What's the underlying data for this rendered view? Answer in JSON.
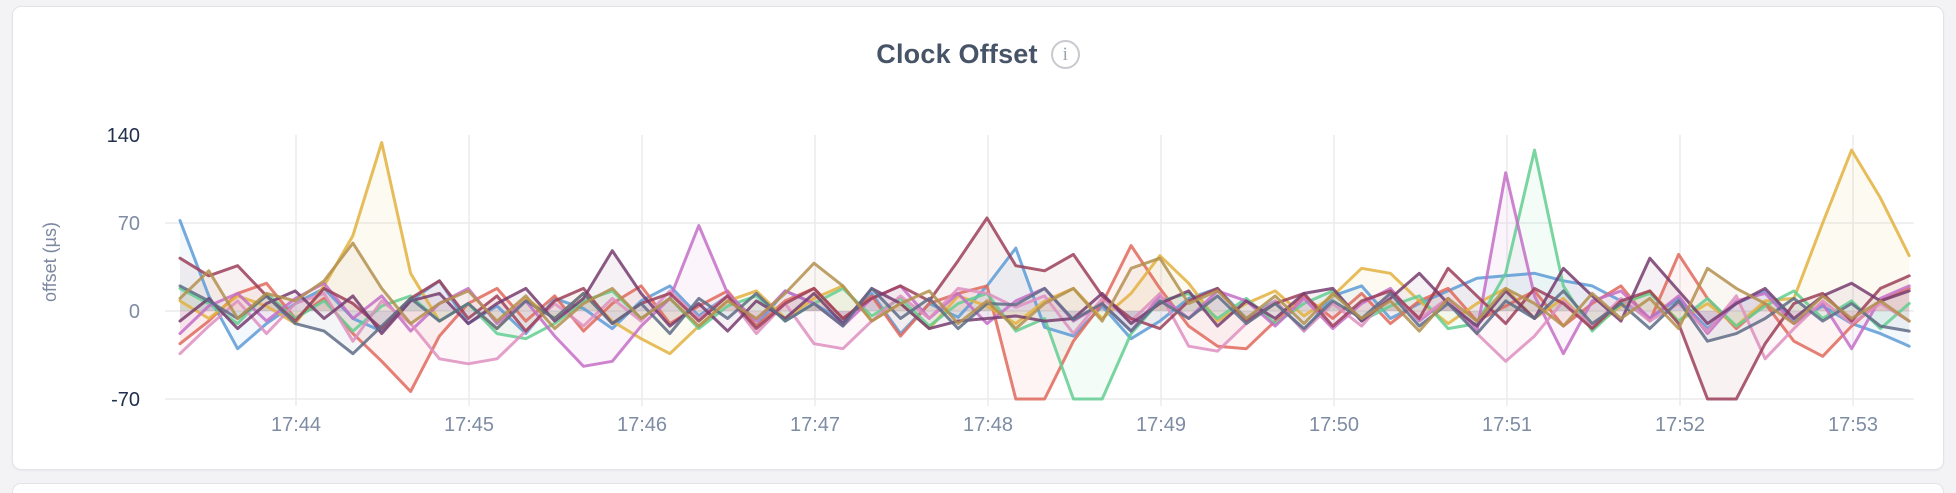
{
  "card": {
    "title": "Clock Offset",
    "info_icon_glyph": "i"
  },
  "chart_data": {
    "type": "line",
    "title": "Clock Offset",
    "xlabel": "",
    "ylabel": "offset (µs)",
    "ylim": [
      -70,
      140
    ],
    "y_ticks": [
      140,
      70,
      0,
      -70
    ],
    "y_tick_labels": [
      "140",
      "70",
      "0",
      "-70"
    ],
    "x_tick_labels": [
      "17:44",
      "17:45",
      "17:46",
      "17:47",
      "17:48",
      "17:49",
      "17:50",
      "17:51",
      "17:52",
      "17:53"
    ],
    "x_start": "17:43:20",
    "x_step_seconds": 10,
    "grid": true,
    "legend": false,
    "line_width": 3,
    "line_opacity": 0.85,
    "area_fill_opacity": 0.07,
    "series": [
      {
        "name": "blue",
        "color": "#5C9BD6",
        "values": [
          72,
          12,
          -30,
          -10,
          6,
          18,
          -6,
          -16,
          8,
          24,
          -10,
          4,
          -18,
          10,
          2,
          -14,
          8,
          20,
          -4,
          12,
          -12,
          16,
          6,
          -8,
          14,
          -18,
          6,
          -5,
          20,
          50,
          -13,
          -20,
          4,
          -22,
          -8,
          10,
          18,
          -6,
          8,
          -16,
          12,
          20,
          -6,
          6,
          16,
          26,
          28,
          30,
          24,
          20,
          8,
          -6,
          10,
          -14,
          6,
          16,
          -8,
          4,
          -10,
          -18,
          -28
        ]
      },
      {
        "name": "coral",
        "color": "#E0685C",
        "values": [
          -26,
          -8,
          14,
          22,
          -6,
          10,
          -18,
          -40,
          -64,
          -20,
          6,
          18,
          -8,
          12,
          -16,
          6,
          20,
          -10,
          4,
          16,
          -12,
          8,
          18,
          -6,
          12,
          -20,
          6,
          14,
          20,
          -70,
          -70,
          -24,
          6,
          52,
          18,
          -12,
          -28,
          -30,
          -8,
          12,
          -6,
          14,
          -10,
          8,
          18,
          -8,
          4,
          16,
          -12,
          6,
          20,
          -8,
          45,
          10,
          -14,
          6,
          -24,
          -36,
          -12,
          8,
          18
        ]
      },
      {
        "name": "gold",
        "color": "#E3B23F",
        "values": [
          8,
          -6,
          12,
          4,
          -10,
          20,
          60,
          134,
          30,
          -8,
          6,
          -14,
          10,
          -6,
          14,
          -8,
          -22,
          -34,
          -12,
          8,
          16,
          -6,
          10,
          20,
          -8,
          6,
          -14,
          12,
          4,
          -10,
          8,
          18,
          -6,
          14,
          44,
          22,
          -8,
          6,
          16,
          -4,
          12,
          34,
          30,
          8,
          -10,
          6,
          18,
          -6,
          10,
          -14,
          4,
          16,
          -8,
          6,
          -12,
          8,
          10,
          70,
          128,
          90,
          44
        ]
      },
      {
        "name": "green",
        "color": "#63CE90",
        "values": [
          18,
          6,
          -10,
          14,
          -6,
          8,
          -16,
          4,
          12,
          -8,
          6,
          -18,
          -22,
          -10,
          8,
          16,
          -6,
          10,
          -14,
          4,
          12,
          -8,
          6,
          18,
          -4,
          10,
          -12,
          6,
          14,
          -16,
          -6,
          -70,
          -70,
          -18,
          8,
          14,
          -6,
          10,
          -10,
          6,
          16,
          -8,
          4,
          12,
          -14,
          -10,
          30,
          128,
          20,
          -16,
          6,
          14,
          -8,
          10,
          -12,
          4,
          16,
          -6,
          8,
          -14,
          6
        ]
      },
      {
        "name": "orchid",
        "color": "#C46FC7",
        "values": [
          -18,
          4,
          14,
          -8,
          10,
          22,
          -6,
          12,
          -16,
          6,
          18,
          -10,
          8,
          -20,
          -44,
          -40,
          -12,
          10,
          68,
          14,
          -8,
          16,
          6,
          -12,
          10,
          20,
          -6,
          14,
          -10,
          8,
          18,
          -8,
          6,
          -16,
          12,
          -6,
          16,
          8,
          -12,
          10,
          -14,
          6,
          18,
          -8,
          10,
          -16,
          110,
          12,
          -34,
          8,
          16,
          -6,
          12,
          -18,
          8,
          14,
          -10,
          6,
          -30,
          10,
          20
        ]
      },
      {
        "name": "pink",
        "color": "#DE8FBF",
        "values": [
          -34,
          -12,
          8,
          -18,
          6,
          14,
          -24,
          8,
          -10,
          -38,
          -42,
          -38,
          -16,
          6,
          -12,
          10,
          -8,
          16,
          -6,
          12,
          -18,
          6,
          -26,
          -30,
          -8,
          12,
          -6,
          18,
          14,
          3,
          12,
          -18,
          10,
          -8,
          14,
          -28,
          -32,
          -10,
          8,
          -16,
          6,
          -12,
          14,
          -6,
          10,
          -18,
          -40,
          -20,
          8,
          -12,
          10,
          -8,
          6,
          -16,
          12,
          -38,
          -14,
          8,
          -10,
          6,
          -8
        ]
      },
      {
        "name": "maroon",
        "color": "#9C4059",
        "values": [
          42,
          28,
          36,
          12,
          -8,
          18,
          6,
          -14,
          10,
          24,
          -6,
          12,
          -16,
          8,
          18,
          -10,
          6,
          14,
          -8,
          12,
          -14,
          6,
          18,
          -6,
          10,
          20,
          8,
          40,
          74,
          36,
          32,
          45,
          12,
          -6,
          -14,
          8,
          18,
          -8,
          6,
          14,
          -12,
          8,
          16,
          -6,
          34,
          12,
          -10,
          18,
          6,
          -14,
          8,
          16,
          -10,
          -70,
          -70,
          -26,
          6,
          14,
          -8,
          18,
          28
        ]
      },
      {
        "name": "plum",
        "color": "#753C6E",
        "values": [
          -8,
          10,
          -14,
          6,
          16,
          -6,
          12,
          -18,
          8,
          14,
          -10,
          6,
          18,
          -8,
          10,
          48,
          14,
          -12,
          6,
          -16,
          8,
          -6,
          14,
          -10,
          18,
          6,
          -14,
          -8,
          -6,
          -4,
          -8,
          -6,
          14,
          -10,
          6,
          16,
          -12,
          8,
          -6,
          14,
          18,
          -8,
          10,
          30,
          6,
          -12,
          16,
          -6,
          34,
          12,
          -8,
          42,
          16,
          -10,
          6,
          18,
          -6,
          12,
          22,
          8,
          16
        ]
      },
      {
        "name": "slate",
        "color": "#5E6C86",
        "values": [
          20,
          8,
          -6,
          12,
          -10,
          -16,
          -34,
          -12,
          10,
          -8,
          6,
          -14,
          8,
          -6,
          14,
          -10,
          6,
          -18,
          10,
          -6,
          14,
          -8,
          6,
          -12,
          18,
          -6,
          10,
          -14,
          6,
          5,
          18,
          -7,
          6,
          -16,
          8,
          -6,
          12,
          -10,
          6,
          -14,
          8,
          -6,
          14,
          -12,
          6,
          -18,
          8,
          -6,
          16,
          -10,
          6,
          -14,
          8,
          -24,
          -18,
          -6,
          10,
          -8,
          6,
          -12,
          -16
        ]
      },
      {
        "name": "tan",
        "color": "#B3914F",
        "values": [
          10,
          32,
          -6,
          14,
          8,
          24,
          54,
          18,
          -10,
          6,
          16,
          -8,
          12,
          -14,
          6,
          18,
          -6,
          10,
          -12,
          8,
          -6,
          14,
          38,
          20,
          -8,
          6,
          16,
          -10,
          8,
          -14,
          6,
          18,
          -8,
          34,
          42,
          6,
          16,
          -6,
          12,
          -10,
          14,
          -6,
          8,
          -16,
          10,
          -8,
          18,
          6,
          -12,
          14,
          -6,
          10,
          -14,
          34,
          18,
          6,
          -10,
          12,
          -6,
          8,
          -8
        ]
      }
    ]
  }
}
